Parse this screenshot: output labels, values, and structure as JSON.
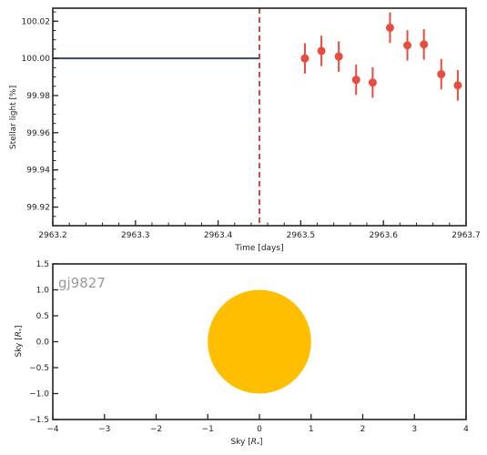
{
  "chart_data": [
    {
      "type": "scatter",
      "title": "",
      "xlabel": "Time [days]",
      "ylabel": "Stellar light [%]",
      "xlim": [
        2963.2,
        2963.7
      ],
      "ylim": [
        99.91,
        100.027
      ],
      "x_ticks": [
        "2963.2",
        "2963.3",
        "2963.4",
        "2963.5",
        "2963.6",
        "2963.7"
      ],
      "x_tick_values": [
        2963.2,
        2963.3,
        2963.4,
        2963.5,
        2963.6,
        2963.7
      ],
      "y_ticks": [
        "99.92",
        "99.94",
        "99.96",
        "99.98",
        "100.00",
        "100.02"
      ],
      "y_tick_values": [
        99.92,
        99.94,
        99.96,
        99.98,
        100.0,
        100.02
      ],
      "model_line": {
        "x": [
          2963.2,
          2963.45
        ],
        "y": [
          100.0,
          100.0
        ],
        "color": "#34495e"
      },
      "vline": {
        "x": 2963.45,
        "color": "#c0392b",
        "style": "dashed"
      },
      "series": [
        {
          "color": "#e74c3c",
          "x": [
            2963.505,
            2963.525,
            2963.546,
            2963.567,
            2963.587,
            2963.608,
            2963.629,
            2963.649,
            2963.67,
            2963.69
          ],
          "y": [
            100.0,
            100.004,
            100.001,
            99.9885,
            99.987,
            100.0165,
            100.007,
            100.0075,
            99.9915,
            99.9855
          ],
          "yerr": [
            0.0082,
            0.0082,
            0.0082,
            0.0082,
            0.0082,
            0.0082,
            0.0082,
            0.0082,
            0.0082,
            0.0082
          ]
        }
      ],
      "grid": false
    },
    {
      "type": "scatter",
      "title": "",
      "xlabel": "Sky [R_*]",
      "ylabel": "Sky [R_*]",
      "xlim": [
        -4,
        4
      ],
      "ylim": [
        -1.5,
        1.5
      ],
      "x_ticks": [
        "−4",
        "−3",
        "−2",
        "−1",
        "0",
        "1",
        "2",
        "3",
        "4"
      ],
      "x_tick_values": [
        -4,
        -3,
        -2,
        -1,
        0,
        1,
        2,
        3,
        4
      ],
      "y_ticks": [
        "−1.5",
        "−1.0",
        "−0.5",
        "0.0",
        "0.5",
        "1.0",
        "1.5"
      ],
      "y_tick_values": [
        -1.5,
        -1.0,
        -0.5,
        0.0,
        0.5,
        1.0,
        1.5
      ],
      "annotation": "gj9827",
      "star": {
        "cx": 0,
        "cy": 0,
        "r": 1,
        "color": "#ffbf00"
      },
      "grid": false
    }
  ]
}
